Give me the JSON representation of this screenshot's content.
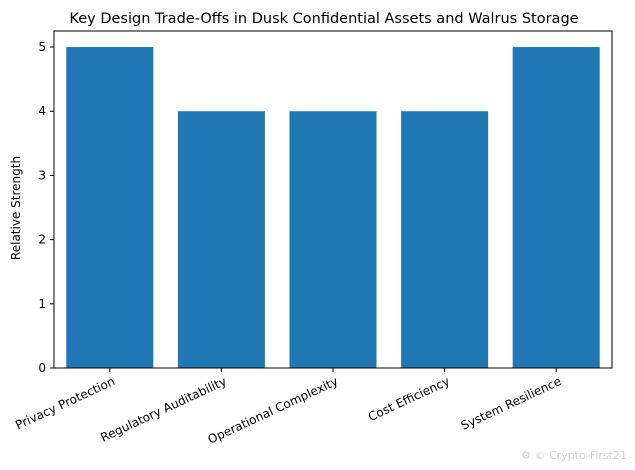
{
  "chart_data": {
    "type": "bar",
    "title": "Key Design Trade-Offs in Dusk Confidential Assets and Walrus Storage",
    "xlabel": "",
    "ylabel": "Relative Strength",
    "categories": [
      "Privacy Protection",
      "Regulatory Auditability",
      "Operational Complexity",
      "Cost Efficiency",
      "System Resilience"
    ],
    "values": [
      5,
      4,
      4,
      4,
      5
    ],
    "ylim": [
      0,
      5.25
    ],
    "yticks": [
      0,
      1,
      2,
      3,
      4,
      5
    ],
    "bar_color": "#1f77b4",
    "grid": false,
    "legend": "none"
  },
  "watermark": "Crypto-First21"
}
